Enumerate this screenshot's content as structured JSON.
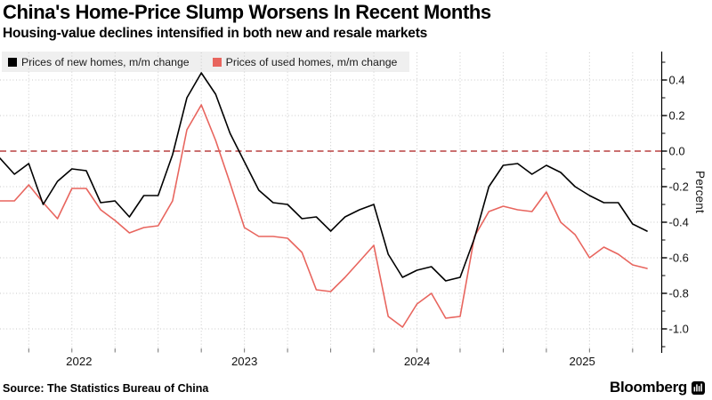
{
  "header": {
    "title": "China's Home-Price Slump Worsens In Recent Months",
    "subtitle": "Housing-value declines intensified in both new and resale markets"
  },
  "legend": {
    "items": [
      {
        "label": "Prices of new homes, m/m change",
        "color": "#000000"
      },
      {
        "label": "Prices of used homes, m/m change",
        "color": "#e8655e"
      }
    ]
  },
  "footer": {
    "source": "Source: The Statistics Bureau of China",
    "brand": "Bloomberg",
    "brand_icon": "bloomberg-terminal-icon"
  },
  "colors": {
    "new_homes_line": "#000000",
    "used_homes_line": "#e8655e",
    "zero_line": "#b84040",
    "gridline": "#c9c9c9",
    "axis": "#000000",
    "legend_background": "#efefef"
  },
  "chart_data": {
    "type": "line",
    "title": "China's Home-Price Slump Worsens In Recent Months",
    "subtitle": "Housing-value declines intensified in both new and resale markets",
    "ylabel": "Percent",
    "ylim": [
      -1.1,
      0.5
    ],
    "yticks": [
      0.4,
      0.2,
      0.0,
      -0.2,
      -0.4,
      -0.6,
      -0.8,
      -1.0
    ],
    "ytick_labels": [
      "0.4",
      "0.2",
      "0.0",
      "-0.2",
      "-0.4",
      "-0.6",
      "-0.8",
      "-1.0"
    ],
    "grid": "dotted, quarterly vertical + 0.2-step horizontal",
    "zero_line": "red dashed at 0.0",
    "legend_position": "top-left",
    "x_tick_labels": [
      "2022",
      "2023",
      "2024",
      "2025"
    ],
    "x": [
      "2022-01",
      "2022-02",
      "2022-03",
      "2022-04",
      "2022-05",
      "2022-06",
      "2022-07",
      "2022-08",
      "2022-09",
      "2022-10",
      "2022-11",
      "2022-12",
      "2023-01",
      "2023-02",
      "2023-03",
      "2023-04",
      "2023-05",
      "2023-06",
      "2023-07",
      "2023-08",
      "2023-09",
      "2023-10",
      "2023-11",
      "2023-12",
      "2024-01",
      "2024-02",
      "2024-03",
      "2024-04",
      "2024-05",
      "2024-06",
      "2024-07",
      "2024-08",
      "2024-09",
      "2024-10",
      "2024-11",
      "2024-12",
      "2025-01",
      "2025-02",
      "2025-03",
      "2025-04",
      "2025-05",
      "2025-06",
      "2025-07",
      "2025-08",
      "2025-09",
      "2025-10"
    ],
    "series": [
      {
        "name": "Prices of new homes, m/m change",
        "color": "#000000",
        "values": [
          -0.04,
          -0.13,
          -0.07,
          -0.3,
          -0.17,
          -0.1,
          -0.11,
          -0.29,
          -0.28,
          -0.37,
          -0.25,
          -0.25,
          -0.02,
          0.3,
          0.44,
          0.32,
          0.1,
          -0.06,
          -0.22,
          -0.29,
          -0.3,
          -0.38,
          -0.37,
          -0.45,
          -0.37,
          -0.33,
          -0.3,
          -0.58,
          -0.71,
          -0.67,
          -0.65,
          -0.73,
          -0.71,
          -0.49,
          -0.2,
          -0.08,
          -0.07,
          -0.13,
          -0.08,
          -0.12,
          -0.2,
          -0.25,
          -0.29,
          -0.29,
          -0.41,
          -0.45
        ]
      },
      {
        "name": "Prices of used homes, m/m change",
        "color": "#e8655e",
        "values": [
          -0.28,
          -0.28,
          -0.19,
          -0.29,
          -0.38,
          -0.21,
          -0.21,
          -0.33,
          -0.39,
          -0.46,
          -0.43,
          -0.42,
          -0.28,
          0.12,
          0.26,
          0.06,
          -0.18,
          -0.43,
          -0.48,
          -0.48,
          -0.49,
          -0.57,
          -0.78,
          -0.79,
          -0.71,
          -0.62,
          -0.53,
          -0.93,
          -0.99,
          -0.86,
          -0.8,
          -0.94,
          -0.93,
          -0.48,
          -0.34,
          -0.31,
          -0.33,
          -0.34,
          -0.23,
          -0.4,
          -0.47,
          -0.6,
          -0.54,
          -0.58,
          -0.64,
          -0.66
        ]
      }
    ]
  }
}
